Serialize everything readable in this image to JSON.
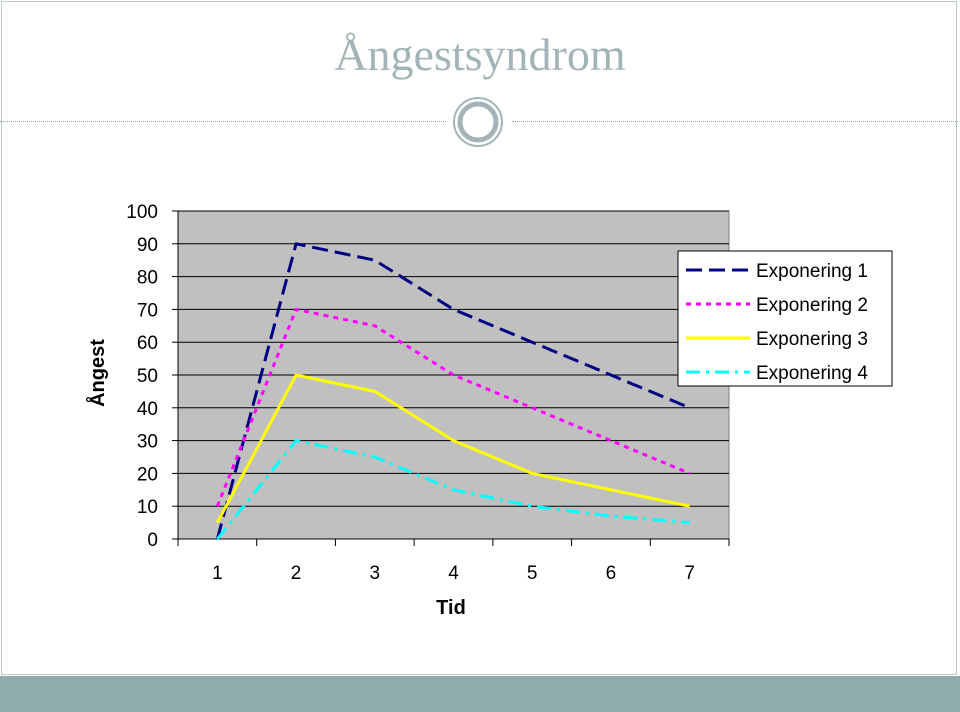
{
  "slide": {
    "title": "Ångestsyndrom"
  },
  "colors": {
    "title": "#a3b4b6",
    "plot_background": "#c0c0c0",
    "footer": "#8facac"
  },
  "chart_data": {
    "type": "line",
    "x": [
      1,
      2,
      3,
      4,
      5,
      6,
      7
    ],
    "xlabel": "Tid",
    "ylabel": "Ångest",
    "ylim": [
      0,
      100
    ],
    "yticks": [
      0,
      10,
      20,
      30,
      40,
      50,
      60,
      70,
      80,
      90,
      100
    ],
    "grid": "horizontal",
    "legend_position": "right",
    "series": [
      {
        "name": "Exponering 1",
        "values": [
          0,
          90,
          85,
          70,
          60,
          50,
          40
        ],
        "color": "#000080",
        "dash": "long-dash"
      },
      {
        "name": "Exponering 2",
        "values": [
          10,
          70,
          65,
          50,
          40,
          30,
          20
        ],
        "color": "#ff00ff",
        "dash": "dot"
      },
      {
        "name": "Exponering 3",
        "values": [
          5,
          50,
          45,
          30,
          20,
          15,
          10
        ],
        "color": "#ffff00",
        "dash": "solid"
      },
      {
        "name": "Exponering 4",
        "values": [
          0,
          30,
          25,
          15,
          10,
          7,
          5
        ],
        "color": "#00ffff",
        "dash": "dash-dot"
      }
    ]
  }
}
